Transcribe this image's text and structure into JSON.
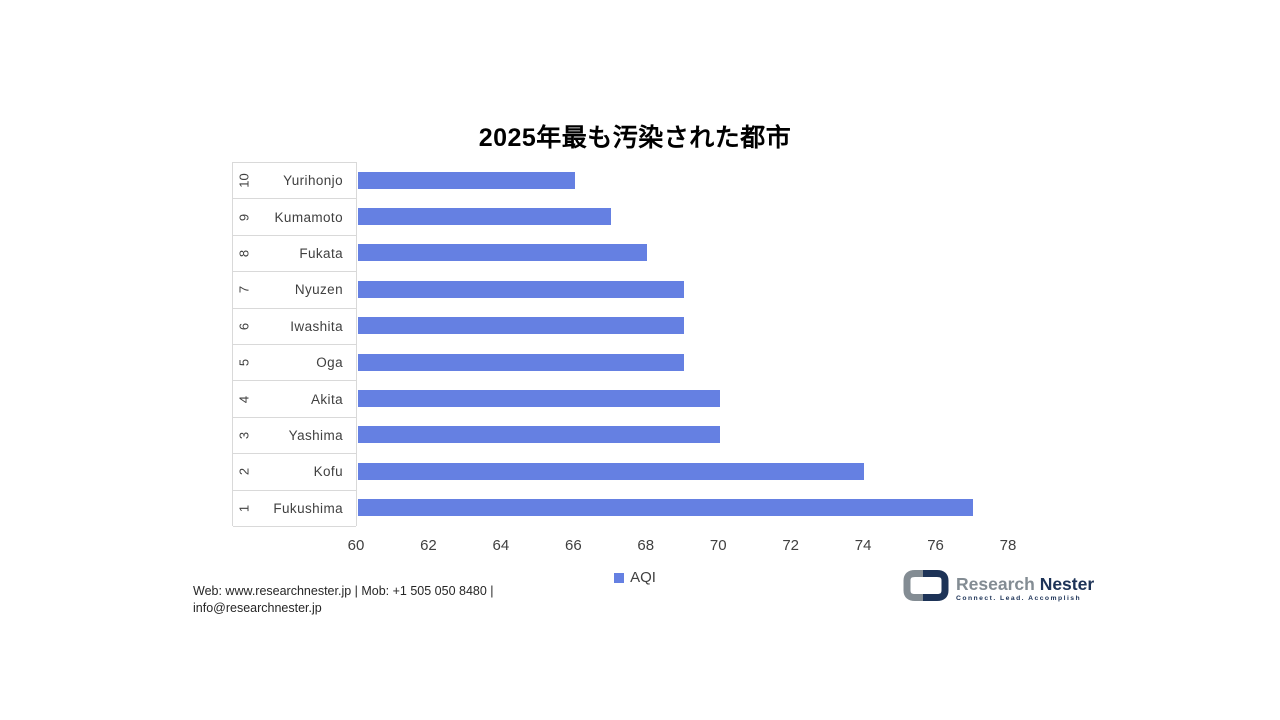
{
  "chart": {
    "title": "2025年最も汚染された都市",
    "legend_label": "AQI",
    "colors": {
      "bar": "#6580E2",
      "grid_line": "#D9D9D9",
      "text": "#404040",
      "logo_navy": "#1D3357",
      "logo_gray": "#838C93"
    }
  },
  "chart_data": {
    "type": "bar",
    "orientation": "horizontal",
    "title": "2025年最も汚染された都市",
    "xlabel": "",
    "ylabel": "",
    "grid": false,
    "legend": [
      "AQI"
    ],
    "legend_position": "bottom-center",
    "xlim": [
      60,
      78
    ],
    "xticks": [
      "60",
      "62",
      "64",
      "66",
      "68",
      "70",
      "72",
      "74",
      "76",
      "78"
    ],
    "ranks": [
      "10",
      "9",
      "8",
      "7",
      "6",
      "5",
      "4",
      "3",
      "2",
      "1"
    ],
    "categories": [
      "Yurihonjo",
      "Kumamoto",
      "Fukata",
      "Nyuzen",
      "Iwashita",
      "Oga",
      "Akita",
      "Yashima",
      "Kofu",
      "Fukushima"
    ],
    "series": [
      {
        "name": "AQI",
        "values": [
          66,
          67,
          68,
          69,
          69,
          69,
          70,
          70,
          74,
          77
        ]
      }
    ]
  },
  "footer": {
    "line1": "Web: www.researchnester.jp | Mob: +1 505 050 8480 |",
    "line2": "info@researchnester.jp"
  },
  "logo": {
    "name_part1": "Research",
    "name_part2": "Nester",
    "tagline": "Connect. Lead. Accomplish"
  }
}
